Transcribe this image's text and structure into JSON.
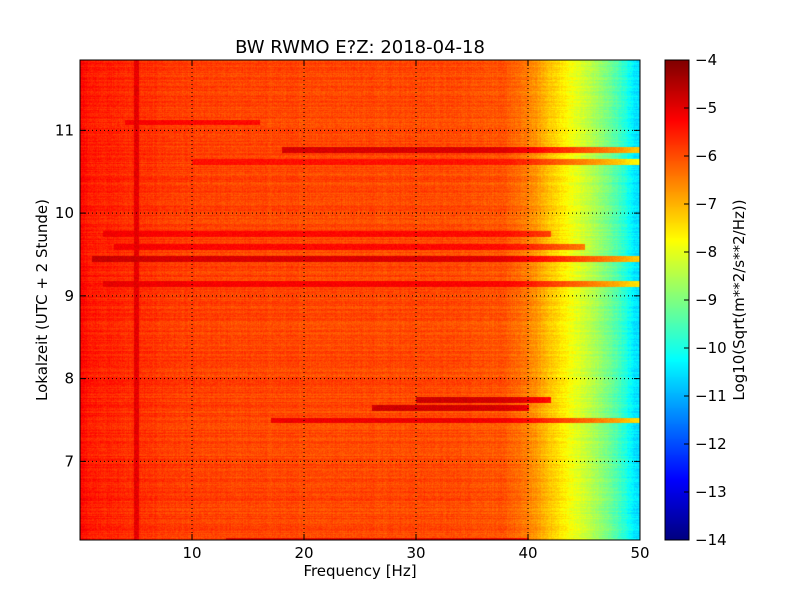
{
  "chart_data": {
    "type": "heatmap",
    "title": "BW RWMO E?Z: 2018-04-18",
    "xlabel": "Frequency [Hz]",
    "ylabel": "Lokalzeit (UTC + 2 Stunde)",
    "xlim": [
      0,
      50
    ],
    "ylim": [
      11.85,
      6.05
    ],
    "y_inverted": true,
    "grid": true,
    "x_ticks": [
      10,
      20,
      30,
      40,
      50
    ],
    "y_ticks": [
      7,
      8,
      9,
      10,
      11
    ],
    "colormap": "jet",
    "colorbar": {
      "label": "Log10(Sqrt(m**2/s**2/Hz))",
      "range": [
        -14,
        -4
      ],
      "ticks": [
        -4,
        -5,
        -6,
        -7,
        -8,
        -9,
        -10,
        -11,
        -12,
        -13,
        -14
      ]
    },
    "z_profile_by_frequency": {
      "x": [
        0,
        1,
        5,
        10,
        20,
        30,
        35,
        38,
        40,
        42,
        44,
        46,
        48,
        49.5,
        50
      ],
      "z": [
        -5.3,
        -5.5,
        -5.7,
        -5.9,
        -5.95,
        -5.95,
        -6.0,
        -6.1,
        -6.5,
        -7.2,
        -7.9,
        -8.6,
        -9.5,
        -10.5,
        -10.6
      ]
    },
    "bands": [
      {
        "time": 6.05,
        "from_hz": 13,
        "to_hz": 40,
        "z": -4.9
      },
      {
        "time": 7.5,
        "from_hz": 17,
        "to_hz": 50,
        "z": -5.1
      },
      {
        "time": 7.65,
        "from_hz": 26,
        "to_hz": 40,
        "z": -4.8
      },
      {
        "time": 7.75,
        "from_hz": 30,
        "to_hz": 42,
        "z": -4.8
      },
      {
        "time": 9.15,
        "from_hz": 2,
        "to_hz": 50,
        "z": -5.2
      },
      {
        "time": 9.45,
        "from_hz": 1,
        "to_hz": 50,
        "z": -4.9
      },
      {
        "time": 9.6,
        "from_hz": 3,
        "to_hz": 45,
        "z": -5.3
      },
      {
        "time": 9.75,
        "from_hz": 2,
        "to_hz": 42,
        "z": -5.3
      },
      {
        "time": 10.62,
        "from_hz": 10,
        "to_hz": 50,
        "z": -5.4
      },
      {
        "time": 10.77,
        "from_hz": 18,
        "to_hz": 50,
        "z": -4.9
      },
      {
        "time": 11.1,
        "from_hz": 4,
        "to_hz": 16,
        "z": -5.3
      }
    ]
  }
}
